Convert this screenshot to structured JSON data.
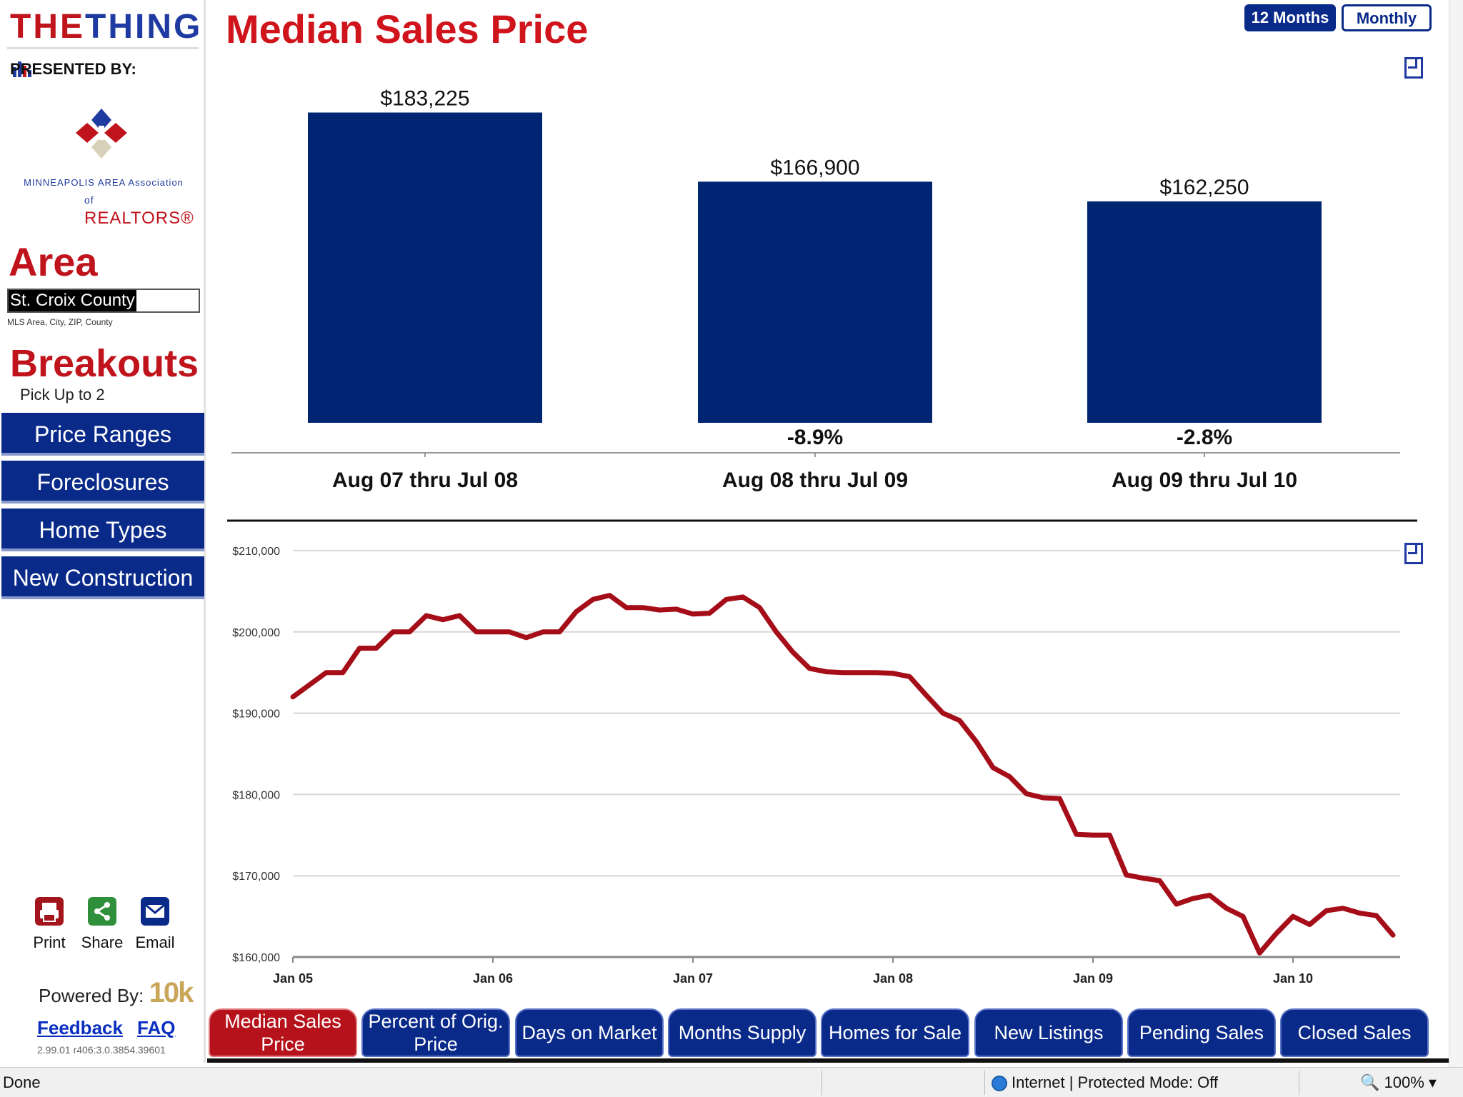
{
  "sidebar": {
    "brand": {
      "part1": "THE",
      "part2": "THING"
    },
    "presented_by": "PRESENTED BY:",
    "org_line1": "MINNEAPOLIS AREA Association",
    "org_line2_of": "of",
    "org_line2": "REALTORS®",
    "area_title": "Area",
    "area_value": "St. Croix County",
    "area_hint": "MLS Area, City, ZIP, County",
    "breakouts_title": "Breakouts",
    "pick_text": "Pick Up to 2",
    "nav": [
      "Price Ranges",
      "Foreclosures",
      "Home Types",
      "New Construction"
    ],
    "utils": {
      "print": "Print",
      "share": "Share",
      "email": "Email"
    },
    "powered_by": "Powered By:",
    "powered_logo": "10k",
    "feedback": "Feedback",
    "faq": "FAQ",
    "version": "2.99.01 r406:3.0.3854.39601"
  },
  "header": {
    "title": "Median Sales Price",
    "toggle_12": "12 Months",
    "toggle_monthly": "Monthly"
  },
  "colors": {
    "navy": "#0a2a8a",
    "bar": "#002673",
    "red": "#b5121b",
    "line": "#a50d18"
  },
  "chart_data": [
    {
      "type": "bar",
      "title": "Median Sales Price",
      "categories": [
        "Aug 07 thru Jul 08",
        "Aug 08 thru Jul 09",
        "Aug 09 thru Jul 10"
      ],
      "values": [
        183225,
        166900,
        162250
      ],
      "value_labels": [
        "$183,225",
        "$166,900",
        "$162,250"
      ],
      "change_labels": [
        "",
        "-8.9%",
        "-2.8%"
      ],
      "ylim": [
        110000,
        185000
      ]
    },
    {
      "type": "line",
      "xlabel": "",
      "ylabel": "",
      "ylim": [
        160000,
        210000
      ],
      "ytick_values": [
        160000,
        170000,
        180000,
        190000,
        200000,
        210000
      ],
      "ytick_labels": [
        "$160,000",
        "$170,000",
        "$180,000",
        "$190,000",
        "$200,000",
        "$210,000"
      ],
      "xtick_labels": [
        "Jan 05",
        "Jan 06",
        "Jan 07",
        "Jan 08",
        "Jan 09",
        "Jan 10"
      ],
      "start_month": "Jan 05",
      "values": [
        192000,
        193500,
        195000,
        195000,
        198000,
        198000,
        200000,
        200000,
        202000,
        201500,
        202000,
        200000,
        200000,
        200000,
        199300,
        200000,
        200000,
        202500,
        204000,
        204500,
        203000,
        203000,
        202700,
        202800,
        202200,
        202300,
        204000,
        204300,
        203000,
        200000,
        197500,
        195500,
        195100,
        195000,
        195000,
        195000,
        194900,
        194500,
        192200,
        190000,
        189100,
        186500,
        183300,
        182200,
        180100,
        179600,
        179500,
        175100,
        175000,
        175000,
        170100,
        169700,
        169400,
        166500,
        167200,
        167600,
        166000,
        165000,
        160500,
        162900,
        165000,
        164000,
        165700,
        166000,
        165400,
        165100,
        162700
      ]
    }
  ],
  "tabs": [
    {
      "line1": "Median Sales",
      "line2": "Price"
    },
    {
      "line1": "Percent of Orig.",
      "line2": "Price"
    },
    {
      "line1": "Days on Market",
      "line2": ""
    },
    {
      "line1": "Months Supply",
      "line2": ""
    },
    {
      "line1": "Homes for Sale",
      "line2": ""
    },
    {
      "line1": "New Listings",
      "line2": ""
    },
    {
      "line1": "Pending Sales",
      "line2": ""
    },
    {
      "line1": "Closed Sales",
      "line2": ""
    }
  ],
  "statusbar": {
    "status": "Done",
    "zone": "Internet | Protected Mode: Off",
    "zoom": "100%"
  }
}
